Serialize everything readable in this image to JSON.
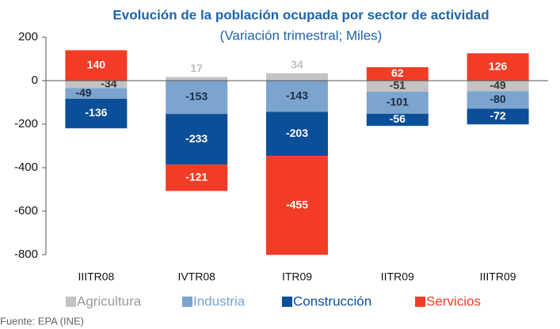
{
  "chart_data": {
    "type": "stacked_bar",
    "title": "Evolución de la población ocupada por sector de actividad",
    "subtitle": "(Variación trimestral; Miles)",
    "categories": [
      "IIITR08",
      "IVTR08",
      "ITR09",
      "IITR09",
      "IIITR09"
    ],
    "series": [
      {
        "name": "Agricultura",
        "color": "#c3c3c3",
        "values": [
          -34,
          17,
          34,
          -51,
          -49
        ]
      },
      {
        "name": "Industria",
        "color": "#7ba5cf",
        "values": [
          -49,
          -153,
          -143,
          -101,
          -80
        ]
      },
      {
        "name": "Construcción",
        "color": "#0b4f98",
        "values": [
          -136,
          -233,
          -203,
          -56,
          -72
        ]
      },
      {
        "name": "Servicios",
        "color": "#f23c26",
        "values": [
          140,
          -121,
          -455,
          62,
          126
        ]
      }
    ],
    "ylim": [
      -800,
      200
    ],
    "yticks": [
      200,
      0,
      -200,
      -400,
      -600,
      -800
    ],
    "legend": "bottom",
    "source": "Fuente: EPA (INE)"
  }
}
